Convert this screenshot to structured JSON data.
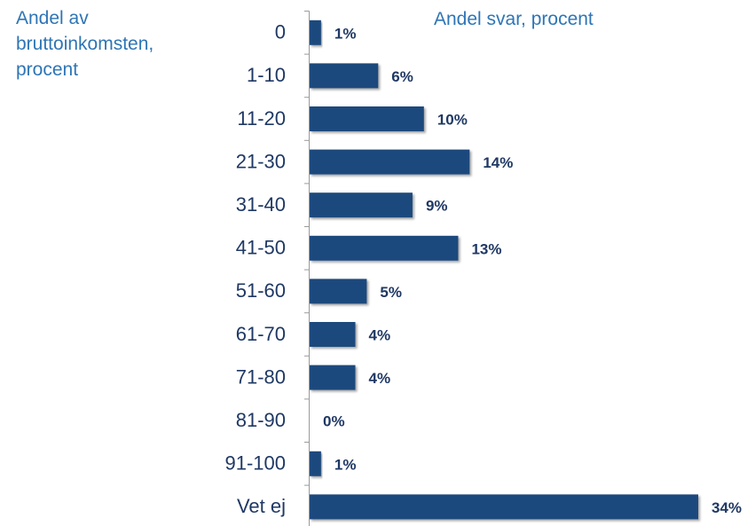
{
  "chart_data": {
    "type": "bar",
    "orientation": "horizontal",
    "y_axis_label": "Andel av bruttoinkomsten, procent",
    "x_axis_label": "Andel svar, procent",
    "categories": [
      "0",
      "1-10",
      "11-20",
      "21-30",
      "31-40",
      "41-50",
      "51-60",
      "61-70",
      "71-80",
      "81-90",
      "91-100",
      "Vet ej"
    ],
    "values": [
      1,
      6,
      10,
      14,
      9,
      13,
      5,
      4,
      4,
      0,
      1,
      34
    ],
    "value_labels": [
      "1%",
      "6%",
      "10%",
      "14%",
      "9%",
      "13%",
      "5%",
      "4%",
      "4%",
      "0%",
      "1%",
      "34%"
    ],
    "color": "#1f497d"
  }
}
